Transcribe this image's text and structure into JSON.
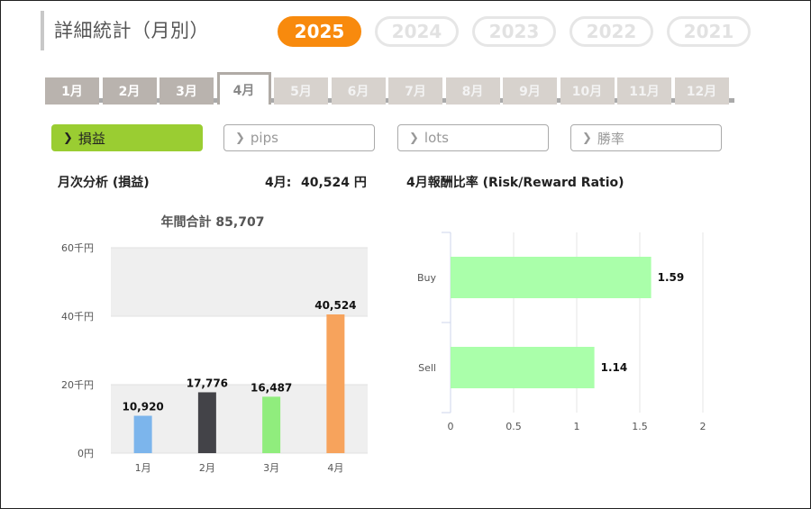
{
  "header": {
    "title": "詳細統計（月別）"
  },
  "years": [
    {
      "label": "2025",
      "active": true
    },
    {
      "label": "2024",
      "active": false
    },
    {
      "label": "2023",
      "active": false
    },
    {
      "label": "2022",
      "active": false
    },
    {
      "label": "2021",
      "active": false
    }
  ],
  "months": [
    {
      "label": "1月",
      "state": "past"
    },
    {
      "label": "2月",
      "state": "past"
    },
    {
      "label": "3月",
      "state": "past"
    },
    {
      "label": "4月",
      "state": "active"
    },
    {
      "label": "5月",
      "state": "future"
    },
    {
      "label": "6月",
      "state": "future"
    },
    {
      "label": "7月",
      "state": "future"
    },
    {
      "label": "8月",
      "state": "future"
    },
    {
      "label": "9月",
      "state": "future"
    },
    {
      "label": "10月",
      "state": "future"
    },
    {
      "label": "11月",
      "state": "future"
    },
    {
      "label": "12月",
      "state": "future"
    }
  ],
  "metrics": [
    {
      "label": "損益",
      "active": true
    },
    {
      "label": "pips",
      "active": false
    },
    {
      "label": "lots",
      "active": false
    },
    {
      "label": "勝率",
      "active": false
    }
  ],
  "monthly": {
    "heading": "月次分析 (損益)",
    "current_label": "4月:",
    "current_value": "40,524 円"
  },
  "ratio": {
    "heading": "4月報酬比率 (Risk/Reward Ratio)"
  },
  "chart_data": [
    {
      "type": "bar",
      "title": "年間合計 85,707",
      "categories": [
        "1月",
        "2月",
        "3月",
        "4月"
      ],
      "values": [
        10920,
        17776,
        16487,
        40524
      ],
      "data_labels": [
        "10,920",
        "17,776",
        "16,487",
        "40,524"
      ],
      "colors": [
        "#7cb5ec",
        "#434348",
        "#90ed7d",
        "#f7a35c"
      ],
      "ylim": [
        0,
        60000
      ],
      "yticks": [
        0,
        20000,
        40000,
        60000
      ],
      "ytick_labels": [
        "0円",
        "20千円",
        "40千円",
        "60千円"
      ],
      "grid": "alternating bands"
    },
    {
      "type": "bar",
      "orientation": "horizontal",
      "categories": [
        "Buy",
        "Sell"
      ],
      "values": [
        1.59,
        1.14
      ],
      "data_labels": [
        "1.59",
        "1.14"
      ],
      "color": "#aaffaa",
      "xlim": [
        0,
        2
      ],
      "xticks": [
        0,
        0.5,
        1,
        1.5,
        2
      ],
      "xtick_labels": [
        "0",
        "0.5",
        "1",
        "1.5",
        "2"
      ],
      "grid": true
    }
  ]
}
